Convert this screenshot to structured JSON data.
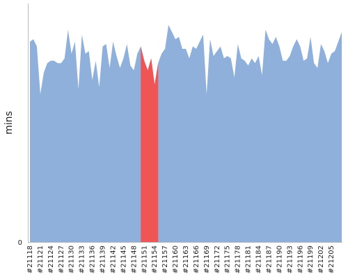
{
  "chart_data": {
    "type": "area",
    "title": "",
    "xlabel": "",
    "ylabel": "mins",
    "ylim": [
      0,
      100
    ],
    "y_ticks": [
      0
    ],
    "grid": false,
    "legend": "none",
    "x_tick_labels": [
      "#21118",
      "#21121",
      "#21124",
      "#21127",
      "#21130",
      "#21133",
      "#21136",
      "#21139",
      "#21142",
      "#21145",
      "#21148",
      "#21151",
      "#21154",
      "#21157",
      "#21160",
      "#21163",
      "#21166",
      "#21169",
      "#21172",
      "#21175",
      "#21178",
      "#21181",
      "#21184",
      "#21187",
      "#21190",
      "#21193",
      "#21196",
      "#21199",
      "#21202",
      "#21205"
    ],
    "x_start": 21118,
    "x_end": 21208,
    "series": [
      {
        "name": "",
        "color": "#8fb0db",
        "values": [
          84,
          85,
          82,
          62,
          71,
          75,
          76,
          76,
          75,
          75,
          77,
          89,
          79,
          84,
          64,
          87,
          79,
          80,
          68,
          76,
          65,
          82,
          83,
          73,
          84,
          78,
          73,
          77,
          83,
          74,
          72,
          79,
          82,
          76,
          72,
          77,
          66,
          75,
          79,
          81,
          91,
          88,
          85,
          86,
          81,
          81,
          77,
          82,
          81,
          84,
          87,
          62,
          85,
          78,
          80,
          82,
          77,
          78,
          77,
          69,
          83,
          77,
          76,
          74,
          77,
          75,
          78,
          70,
          89,
          85,
          83,
          86,
          82,
          76,
          76,
          78,
          82,
          85,
          82,
          76,
          77,
          86,
          75,
          73,
          83,
          80,
          75,
          79,
          80,
          84,
          88
        ]
      }
    ],
    "highlight": {
      "color": "#f05555",
      "start": 21150,
      "end": 21155
    }
  }
}
